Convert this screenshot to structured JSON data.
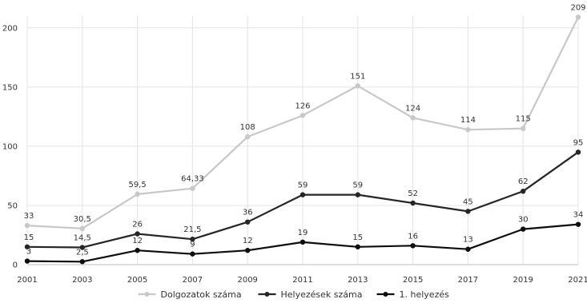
{
  "chart_data": {
    "type": "line",
    "title": "",
    "xlabel": "",
    "ylabel": "",
    "x": [
      "2001",
      "2003",
      "2005",
      "2007",
      "2009",
      "2011",
      "2013",
      "2015",
      "2017",
      "2019",
      "2021"
    ],
    "ylim": [
      0,
      210
    ],
    "yticks": [
      0,
      50,
      100,
      150,
      200
    ],
    "grid": true,
    "legend_position": "bottom",
    "series": [
      {
        "name": "Dolgozatok száma",
        "color": "#c8c8c8",
        "values": [
          33,
          30.5,
          59.5,
          64.33,
          108,
          126,
          151,
          124,
          114,
          115,
          209
        ],
        "labels": [
          "33",
          "30,5",
          "59,5",
          "64,33",
          "108",
          "126",
          "151",
          "124",
          "114",
          "115",
          "209"
        ]
      },
      {
        "name": "Helyezések száma",
        "color": "#262626",
        "values": [
          15,
          14.5,
          26,
          21.5,
          36,
          59,
          59,
          52,
          45,
          62,
          95
        ],
        "labels": [
          "15",
          "14,5",
          "26",
          "21,5",
          "36",
          "59",
          "59",
          "52",
          "45",
          "62",
          "95"
        ]
      },
      {
        "name": "1. helyezés",
        "color": "#0d0d0d",
        "values": [
          3,
          2.5,
          12,
          9,
          12,
          19,
          15,
          16,
          13,
          30,
          34
        ],
        "labels": [
          "3",
          "2,5",
          "12",
          "9",
          "12",
          "19",
          "15",
          "16",
          "13",
          "30",
          "34"
        ]
      }
    ]
  }
}
